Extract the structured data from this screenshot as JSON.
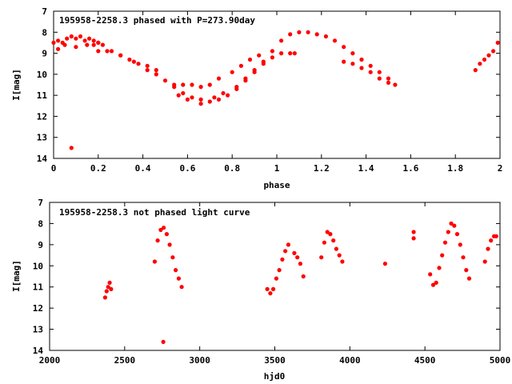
{
  "chart_data": [
    {
      "type": "scatter",
      "title": "195958-2258.3 phased with P=273.90day",
      "xlabel": "phase",
      "ylabel": "I[mag]",
      "xlim": [
        0,
        2
      ],
      "ylim": [
        14,
        7
      ],
      "y_inverted": true,
      "xticks": [
        "0",
        "0.2",
        "0.4",
        "0.6",
        "0.8",
        "1",
        "1.2",
        "1.4",
        "1.6",
        "1.8",
        "2"
      ],
      "yticks": [
        "7",
        "8",
        "9",
        "10",
        "11",
        "12",
        "13",
        "14"
      ],
      "grid": false,
      "marker_color": "#ff0000",
      "series": [
        {
          "x": [
            0.0,
            0.02,
            0.04,
            0.06,
            0.08,
            0.1,
            0.12,
            0.14,
            0.16,
            0.18,
            0.2,
            0.22,
            0.26,
            0.3,
            0.34,
            0.38,
            0.42,
            0.46,
            0.5,
            0.54,
            0.58,
            0.62,
            0.66,
            0.7,
            0.74,
            0.78,
            0.82,
            0.86,
            0.9,
            0.94,
            0.98,
            1.02,
            1.06,
            1.1,
            1.14,
            1.18,
            1.22,
            1.26,
            1.3,
            1.34,
            1.38,
            1.42,
            1.46,
            1.5,
            1.53,
            0.02,
            0.05,
            0.1,
            0.15,
            0.2,
            0.08,
            0.18,
            0.2,
            0.24,
            0.3,
            0.36,
            0.42,
            0.46,
            0.54,
            0.58,
            0.62,
            0.66,
            0.7,
            0.74,
            0.8,
            0.84,
            0.88,
            0.92,
            0.56,
            0.6,
            0.66,
            0.72,
            0.76,
            0.82,
            0.86,
            0.9,
            0.94,
            0.98,
            1.02,
            1.06,
            1.08,
            1.3,
            1.34,
            1.38,
            1.42,
            1.46,
            1.5,
            1.89,
            1.91,
            1.93,
            1.95,
            1.97,
            1.99
          ],
          "y": [
            8.5,
            8.4,
            8.5,
            8.3,
            8.2,
            8.3,
            8.2,
            8.4,
            8.3,
            8.4,
            8.5,
            8.6,
            8.9,
            9.1,
            9.3,
            9.5,
            9.8,
            10.0,
            10.3,
            10.6,
            10.9,
            11.1,
            11.2,
            11.3,
            11.2,
            11.0,
            10.7,
            10.3,
            9.9,
            9.4,
            8.9,
            8.4,
            8.1,
            8.0,
            8.0,
            8.1,
            8.2,
            8.4,
            8.7,
            9.0,
            9.3,
            9.6,
            9.9,
            10.2,
            10.5,
            8.8,
            8.6,
            8.7,
            8.6,
            8.5,
            13.5,
            8.6,
            8.9,
            8.9,
            9.1,
            9.4,
            9.6,
            9.8,
            10.5,
            10.5,
            10.5,
            10.6,
            10.5,
            10.2,
            9.9,
            9.6,
            9.3,
            9.1,
            11.0,
            11.2,
            11.4,
            11.1,
            10.9,
            10.6,
            10.2,
            9.8,
            9.5,
            9.2,
            9.0,
            9.0,
            9.0,
            9.4,
            9.5,
            9.7,
            9.9,
            10.2,
            10.4,
            9.8,
            9.5,
            9.3,
            9.1,
            8.9,
            8.5
          ]
        }
      ]
    },
    {
      "type": "scatter",
      "title": "195958-2258.3 not phased light curve",
      "xlabel": "hjd0",
      "ylabel": "I[mag]",
      "xlim": [
        2000,
        5000
      ],
      "ylim": [
        14,
        7
      ],
      "y_inverted": true,
      "xticks": [
        "2000",
        "2500",
        "3000",
        "3500",
        "4000",
        "4500",
        "5000"
      ],
      "yticks": [
        "7",
        "8",
        "9",
        "10",
        "11",
        "12",
        "13",
        "14"
      ],
      "grid": false,
      "marker_color": "#ff0000",
      "series": [
        {
          "x": [
            2370,
            2380,
            2390,
            2400,
            2410,
            2700,
            2720,
            2740,
            2760,
            2780,
            2800,
            2820,
            2840,
            2860,
            2880,
            2757,
            3450,
            3470,
            3490,
            3510,
            3530,
            3550,
            3570,
            3590,
            3630,
            3650,
            3670,
            3690,
            3810,
            3830,
            3850,
            3870,
            3890,
            3910,
            3930,
            3950,
            4235,
            4425,
            4425,
            4535,
            4555,
            4575,
            4595,
            4615,
            4635,
            4655,
            4675,
            4695,
            4715,
            4735,
            4755,
            4775,
            4795,
            4900,
            4920,
            4940,
            4960,
            4975
          ],
          "y": [
            11.5,
            11.2,
            11.0,
            10.8,
            11.1,
            9.8,
            8.8,
            8.3,
            8.2,
            8.5,
            9.0,
            9.6,
            10.2,
            10.6,
            11.0,
            13.6,
            11.1,
            11.3,
            11.1,
            10.6,
            10.2,
            9.7,
            9.3,
            9.0,
            9.4,
            9.6,
            9.9,
            10.5,
            9.6,
            8.9,
            8.4,
            8.5,
            8.8,
            9.2,
            9.5,
            9.8,
            9.9,
            8.4,
            8.7,
            10.4,
            10.9,
            10.8,
            10.1,
            9.5,
            8.9,
            8.4,
            8.0,
            8.1,
            8.5,
            9.0,
            9.6,
            10.2,
            10.6,
            9.8,
            9.2,
            8.8,
            8.6,
            8.6
          ]
        }
      ]
    }
  ]
}
